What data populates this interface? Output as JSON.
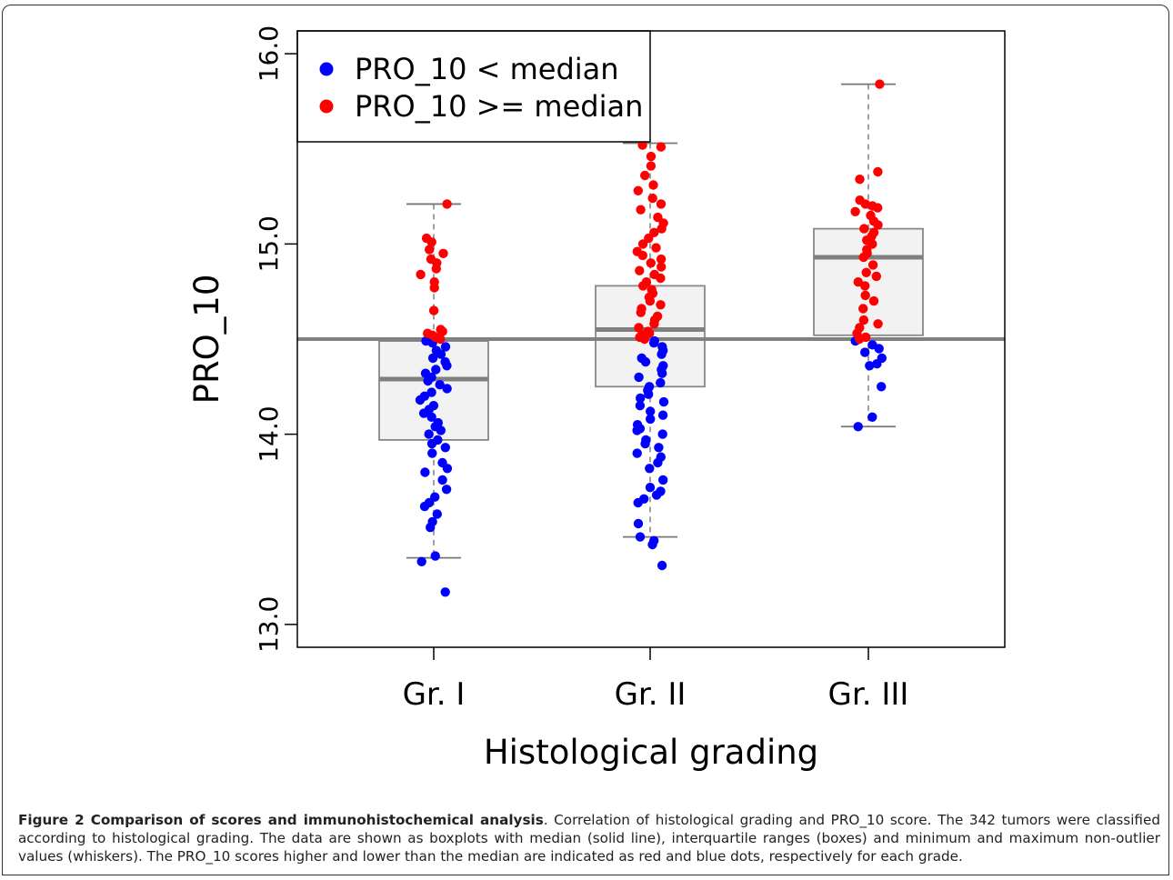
{
  "figure": {
    "caption_title": "Figure 2 Comparison of scores and immunohistochemical analysis",
    "caption_body": ". Correlation of histological grading and PRO_10 score. The 342 tumors were classified according to histological grading. The data are shown as boxplots with median (solid line), interquartile ranges (boxes) and minimum and maximum non-outlier values (whiskers). The PRO_10 scores higher and lower than the median are indicated as red and blue dots, respectively for each grade."
  },
  "chart_data": {
    "type": "box",
    "xlabel": "Histological grading",
    "ylabel": "PRO_10",
    "categories": [
      "Gr. I",
      "Gr. II",
      "Gr. III"
    ],
    "ylim": [
      12.88,
      16.12
    ],
    "yticks": [
      13.0,
      14.0,
      15.0,
      16.0
    ],
    "ytick_labels": [
      "13.0",
      "14.0",
      "15.0",
      "16.0"
    ],
    "reference_line": 14.5,
    "legend": {
      "position": "top-left",
      "entries": [
        {
          "label": "PRO_10 < median",
          "color": "#0000ff"
        },
        {
          "label": "PRO_10 >= median",
          "color": "#ff0000"
        }
      ]
    },
    "boxes": [
      {
        "category": "Gr. I",
        "whisker_low": 13.35,
        "q1": 13.97,
        "median": 14.29,
        "q3": 14.49,
        "whisker_high": 15.21
      },
      {
        "category": "Gr. II",
        "whisker_low": 13.46,
        "q1": 14.25,
        "median": 14.55,
        "q3": 14.78,
        "whisker_high": 15.53
      },
      {
        "category": "Gr. III",
        "whisker_low": 14.04,
        "q1": 14.52,
        "median": 14.93,
        "q3": 15.08,
        "whisker_high": 15.84
      }
    ],
    "series": [
      {
        "name": "PRO_10 < median",
        "color": "#0000ff",
        "points": [
          {
            "category": "Gr. I",
            "values": [
              13.17,
              13.33,
              13.36,
              13.51,
              13.54,
              13.58,
              13.62,
              13.64,
              13.67,
              13.71,
              13.76,
              13.8,
              13.82,
              13.85,
              13.9,
              13.93,
              13.95,
              13.97,
              14.0,
              14.02,
              14.04,
              14.06,
              14.09,
              14.11,
              14.13,
              14.15,
              14.18,
              14.2,
              14.22,
              14.24,
              14.26,
              14.28,
              14.3,
              14.32,
              14.34,
              14.36,
              14.38,
              14.4,
              14.42,
              14.44,
              14.46,
              14.48,
              14.49
            ]
          },
          {
            "category": "Gr. II",
            "values": [
              13.31,
              13.42,
              13.44,
              13.46,
              13.53,
              13.64,
              13.66,
              13.68,
              13.7,
              13.72,
              13.76,
              13.82,
              13.85,
              13.88,
              13.9,
              13.93,
              13.95,
              13.97,
              14.0,
              14.02,
              14.03,
              14.05,
              14.08,
              14.1,
              14.12,
              14.15,
              14.17,
              14.19,
              14.21,
              14.23,
              14.25,
              14.27,
              14.3,
              14.32,
              14.34,
              14.36,
              14.38,
              14.4,
              14.42,
              14.44,
              14.46,
              14.48,
              14.49
            ]
          },
          {
            "category": "Gr. III",
            "values": [
              14.04,
              14.09,
              14.25,
              14.36,
              14.37,
              14.4,
              14.43,
              14.45,
              14.47,
              14.49
            ]
          }
        ]
      },
      {
        "name": "PRO_10 >= median",
        "color": "#ff0000",
        "points": [
          {
            "category": "Gr. I",
            "values": [
              14.5,
              14.51,
              14.52,
              14.53,
              14.54,
              14.55,
              14.65,
              14.77,
              14.8,
              14.84,
              14.87,
              14.9,
              14.92,
              14.95,
              14.97,
              15.01,
              15.03,
              15.21
            ]
          },
          {
            "category": "Gr. II",
            "values": [
              14.5,
              14.51,
              14.52,
              14.53,
              14.54,
              14.56,
              14.58,
              14.6,
              14.62,
              14.64,
              14.66,
              14.68,
              14.7,
              14.72,
              14.74,
              14.76,
              14.78,
              14.8,
              14.82,
              14.84,
              14.86,
              14.88,
              14.9,
              14.92,
              14.94,
              14.96,
              14.98,
              15.0,
              15.03,
              15.06,
              15.08,
              15.11,
              15.14,
              15.18,
              15.21,
              15.24,
              15.28,
              15.31,
              15.36,
              15.41,
              15.46,
              15.51,
              15.52
            ]
          },
          {
            "category": "Gr. III",
            "values": [
              14.5,
              14.51,
              14.53,
              14.56,
              14.58,
              14.6,
              14.66,
              14.7,
              14.73,
              14.78,
              14.8,
              14.83,
              14.85,
              14.89,
              14.93,
              14.95,
              14.97,
              15.0,
              15.02,
              15.04,
              15.06,
              15.08,
              15.1,
              15.12,
              15.15,
              15.17,
              15.19,
              15.2,
              15.21,
              15.23,
              15.34,
              15.38,
              15.84
            ]
          }
        ]
      }
    ]
  }
}
